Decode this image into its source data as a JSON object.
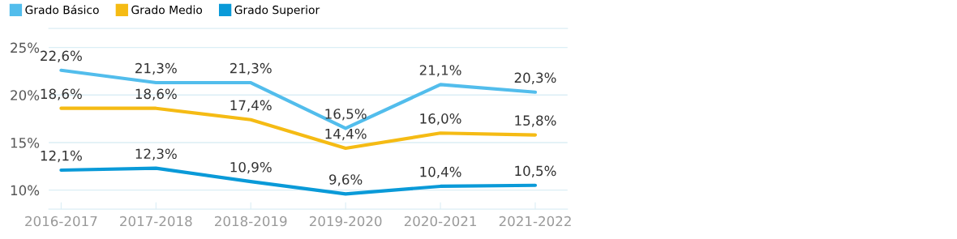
{
  "chart_data": {
    "type": "line",
    "categories": [
      "2016-2017",
      "2017-2018",
      "2018-2019",
      "2019-2020",
      "2020-2021",
      "2021-2022"
    ],
    "series": [
      {
        "name": "Grado Básico",
        "color": "#52bdec",
        "values": [
          22.6,
          21.3,
          21.3,
          16.5,
          21.1,
          20.3
        ],
        "value_labels": [
          "22,6%",
          "21,3%",
          "21,3%",
          "16,5%",
          "21,1%",
          "20,3%"
        ]
      },
      {
        "name": "Grado Medio",
        "color": "#f5bb14",
        "values": [
          18.6,
          18.6,
          17.4,
          14.4,
          16.0,
          15.8
        ],
        "value_labels": [
          "18,6%",
          "18,6%",
          "17,4%",
          "14,4%",
          "16,0%",
          "15,8%"
        ]
      },
      {
        "name": "Grado Superior",
        "color": "#0a9ad8",
        "values": [
          12.1,
          12.3,
          10.9,
          9.6,
          10.4,
          10.5
        ],
        "value_labels": [
          "12,1%",
          "12,3%",
          "10,9%",
          "9,6%",
          "10,4%",
          "10,5%"
        ]
      }
    ],
    "ylim": [
      8,
      27
    ],
    "yticks": [
      {
        "value": 10,
        "label": "10%"
      },
      {
        "value": 15,
        "label": "15%"
      },
      {
        "value": 20,
        "label": "20%"
      },
      {
        "value": 25,
        "label": "25%"
      }
    ],
    "grid": "y",
    "legend": "top left",
    "marker": "none",
    "line_style": "solid"
  }
}
